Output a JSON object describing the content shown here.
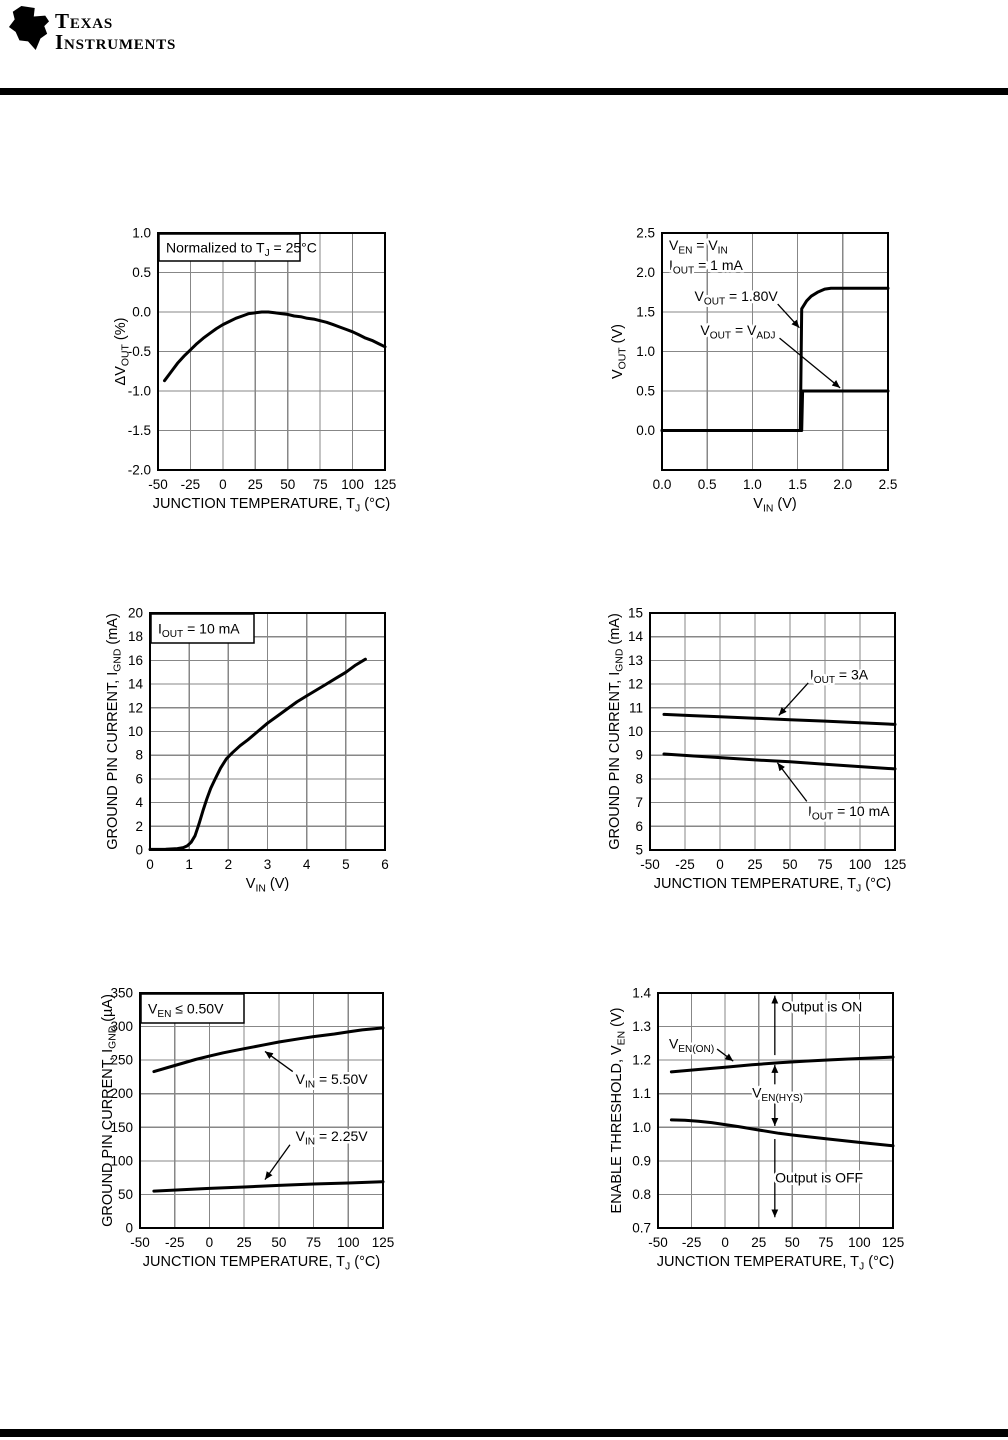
{
  "header": {
    "logo_line1": "Texas",
    "logo_line2": "Instruments",
    "logo_bug_text": "ti"
  },
  "colors": {
    "grid": "#878787",
    "ink": "#000000",
    "background": "#ffffff"
  },
  "chart_data": [
    {
      "id": "vout-change-vs-temperature",
      "type": "line",
      "xlabel": "JUNCTION TEMPERATURE, T_{J} (°C)",
      "ylabel": "ΔV_{OUT} (%)",
      "xlim": [
        -50,
        125
      ],
      "ylim": [
        -2.0,
        1.0
      ],
      "grid": true,
      "legend": "none",
      "xticks": [
        -50,
        -25,
        0,
        25,
        50,
        75,
        100,
        125
      ],
      "xtick_labels": [
        "-50",
        "-25",
        "0",
        "25",
        "50",
        "75",
        "100",
        "125"
      ],
      "yticks": [
        -2.0,
        -1.5,
        -1.0,
        -0.5,
        0.0,
        0.5,
        1.0
      ],
      "ytick_labels": [
        "-2.0",
        "-1.5",
        "-1.0",
        "-0.5",
        "0.0",
        "0.5",
        "1.0"
      ],
      "annotation_box": "Normalized to T_{J} = 25°C",
      "series": [
        {
          "name": "ΔV_{OUT}",
          "points": [
            [
              -45,
              -0.87
            ],
            [
              -40,
              -0.76
            ],
            [
              -35,
              -0.65
            ],
            [
              -30,
              -0.56
            ],
            [
              -25,
              -0.48
            ],
            [
              -20,
              -0.4
            ],
            [
              -15,
              -0.33
            ],
            [
              -10,
              -0.27
            ],
            [
              -5,
              -0.21
            ],
            [
              0,
              -0.16
            ],
            [
              5,
              -0.12
            ],
            [
              10,
              -0.08
            ],
            [
              15,
              -0.05
            ],
            [
              20,
              -0.02
            ],
            [
              25,
              -0.01
            ],
            [
              30,
              0
            ],
            [
              35,
              0
            ],
            [
              40,
              -0.01
            ],
            [
              45,
              -0.02
            ],
            [
              50,
              -0.03
            ],
            [
              55,
              -0.05
            ],
            [
              60,
              -0.06
            ],
            [
              65,
              -0.08
            ],
            [
              70,
              -0.09
            ],
            [
              75,
              -0.11
            ],
            [
              80,
              -0.13
            ],
            [
              85,
              -0.16
            ],
            [
              90,
              -0.19
            ],
            [
              95,
              -0.22
            ],
            [
              100,
              -0.25
            ],
            [
              105,
              -0.29
            ],
            [
              110,
              -0.33
            ],
            [
              115,
              -0.36
            ],
            [
              120,
              -0.4
            ],
            [
              125,
              -0.44
            ]
          ]
        }
      ],
      "labels": []
    },
    {
      "id": "vout-vs-vin",
      "type": "line",
      "xlabel": "V_{IN} (V)",
      "ylabel": "V_{OUT} (V)",
      "xlim": [
        0,
        2.5
      ],
      "ylim": [
        -0.5,
        2.5
      ],
      "grid": true,
      "legend": "none",
      "xticks": [
        0,
        0.5,
        1.0,
        1.5,
        2.0,
        2.5
      ],
      "xtick_labels": [
        "0.0",
        "0.5",
        "1.0",
        "1.5",
        "2.0",
        "2.5"
      ],
      "yticks": [
        0,
        0.5,
        1.0,
        1.5,
        2.0,
        2.5
      ],
      "ytick_labels": [
        "0.0",
        "0.5",
        "1.0",
        "1.5",
        "2.0",
        "2.5"
      ],
      "annotation_lines": [
        "V_{EN} = V_{IN}",
        "I_{OUT} = 1 mA"
      ],
      "series": [
        {
          "name": "V_{OUT} = 1.80V",
          "points": [
            [
              0,
              0
            ],
            [
              1.53,
              0
            ],
            [
              1.545,
              1.54
            ],
            [
              1.6,
              1.64
            ],
            [
              1.65,
              1.7
            ],
            [
              1.72,
              1.75
            ],
            [
              1.8,
              1.79
            ],
            [
              1.87,
              1.8
            ],
            [
              2.5,
              1.8
            ]
          ]
        },
        {
          "name": "V_{OUT} = V_{ADJ}",
          "points": [
            [
              0,
              0
            ],
            [
              1.545,
              0
            ],
            [
              1.555,
              0.5
            ],
            [
              2.5,
              0.5
            ]
          ]
        }
      ],
      "labels": [
        {
          "text": "V_{OUT} = 1.80V",
          "x": 0.82,
          "y": 1.7,
          "arrow": {
            "x1": 1.28,
            "y1": 1.6,
            "x2": 1.52,
            "y2": 1.3
          }
        },
        {
          "text": "V_{OUT} = V_{ADJ}",
          "x": 0.84,
          "y": 1.27,
          "arrow": {
            "x1": 1.3,
            "y1": 1.17,
            "x2": 1.97,
            "y2": 0.54
          }
        }
      ]
    },
    {
      "id": "ignd-vs-vin",
      "type": "line",
      "xlabel": "V_{IN} (V)",
      "ylabel": "GROUND PIN CURRENT, I_{GND} (mA)",
      "xlim": [
        0,
        6
      ],
      "ylim": [
        0,
        20
      ],
      "grid": true,
      "legend": "none",
      "xticks": [
        0,
        1,
        2,
        3,
        4,
        5,
        6
      ],
      "xtick_labels": [
        "0",
        "1",
        "2",
        "3",
        "4",
        "5",
        "6"
      ],
      "yticks": [
        0,
        2,
        4,
        6,
        8,
        10,
        12,
        14,
        16,
        18,
        20
      ],
      "ytick_labels": [
        "0",
        "2",
        "4",
        "6",
        "8",
        "10",
        "12",
        "14",
        "16",
        "18",
        "20"
      ],
      "annotation_box": "I_{OUT} = 10 mA",
      "series": [
        {
          "name": "I_{GND}",
          "points": [
            [
              0,
              0.05
            ],
            [
              0.4,
              0.07
            ],
            [
              0.7,
              0.12
            ],
            [
              0.85,
              0.2
            ],
            [
              0.95,
              0.35
            ],
            [
              1.05,
              0.65
            ],
            [
              1.15,
              1.2
            ],
            [
              1.25,
              2.2
            ],
            [
              1.35,
              3.3
            ],
            [
              1.45,
              4.3
            ],
            [
              1.55,
              5.2
            ],
            [
              1.65,
              5.9
            ],
            [
              1.8,
              6.9
            ],
            [
              1.95,
              7.7
            ],
            [
              2.1,
              8.2
            ],
            [
              2.3,
              8.8
            ],
            [
              2.5,
              9.3
            ],
            [
              2.75,
              10
            ],
            [
              3,
              10.7
            ],
            [
              3.25,
              11.3
            ],
            [
              3.5,
              11.9
            ],
            [
              3.75,
              12.5
            ],
            [
              4,
              13
            ],
            [
              4.25,
              13.5
            ],
            [
              4.5,
              14
            ],
            [
              4.75,
              14.5
            ],
            [
              5,
              15
            ],
            [
              5.25,
              15.6
            ],
            [
              5.5,
              16.1
            ]
          ]
        }
      ],
      "labels": []
    },
    {
      "id": "ignd-vs-temperature",
      "type": "line",
      "xlabel": "JUNCTION TEMPERATURE, T_{J} (°C)",
      "ylabel": "GROUND PIN CURRENT, I_{GND} (mA)",
      "xlim": [
        -50,
        125
      ],
      "ylim": [
        5,
        15
      ],
      "grid": true,
      "legend": "none",
      "xticks": [
        -50,
        -25,
        0,
        25,
        50,
        75,
        100,
        125
      ],
      "xtick_labels": [
        "-50",
        "-25",
        "0",
        "25",
        "50",
        "75",
        "100",
        "125"
      ],
      "yticks": [
        5,
        6,
        7,
        8,
        9,
        10,
        11,
        12,
        13,
        14,
        15
      ],
      "ytick_labels": [
        "5",
        "6",
        "7",
        "8",
        "9",
        "10",
        "11",
        "12",
        "13",
        "14",
        "15"
      ],
      "series": [
        {
          "name": "I_{OUT} = 3A",
          "points": [
            [
              -40,
              10.72
            ],
            [
              -20,
              10.67
            ],
            [
              0,
              10.62
            ],
            [
              25,
              10.56
            ],
            [
              50,
              10.5
            ],
            [
              75,
              10.44
            ],
            [
              100,
              10.37
            ],
            [
              125,
              10.3
            ]
          ]
        },
        {
          "name": "I_{OUT} = 10 mA",
          "points": [
            [
              -40,
              9.05
            ],
            [
              -20,
              8.97
            ],
            [
              0,
              8.9
            ],
            [
              25,
              8.8
            ],
            [
              50,
              8.72
            ],
            [
              75,
              8.62
            ],
            [
              100,
              8.52
            ],
            [
              125,
              8.42
            ]
          ]
        }
      ],
      "labels": [
        {
          "text": "I_{OUT} = 3A",
          "x": 85,
          "y": 12.4,
          "arrow": {
            "x1": 63,
            "y1": 12.05,
            "x2": 42,
            "y2": 10.68
          }
        },
        {
          "text": "I_{OUT} = 10 mA",
          "x": 92,
          "y": 6.65,
          "arrow": {
            "x1": 62,
            "y1": 7.05,
            "x2": 41,
            "y2": 8.68
          }
        }
      ]
    },
    {
      "id": "ignd-shutdown-vs-temperature",
      "type": "line",
      "xlabel": "JUNCTION TEMPERATURE, T_{J} (°C)",
      "ylabel": "GROUND PIN CURRENT, I_{GND} (µA)",
      "xlim": [
        -50,
        125
      ],
      "ylim": [
        0,
        350
      ],
      "grid": true,
      "legend": "none",
      "xticks": [
        -50,
        -25,
        0,
        25,
        50,
        75,
        100,
        125
      ],
      "xtick_labels": [
        "-50",
        "-25",
        "0",
        "25",
        "50",
        "75",
        "100",
        "125"
      ],
      "yticks": [
        0,
        50,
        100,
        150,
        200,
        250,
        300,
        350
      ],
      "ytick_labels": [
        "0",
        "50",
        "100",
        "150",
        "200",
        "250",
        "300",
        "350"
      ],
      "annotation_box": "V_{EN} ≤ 0.50V",
      "series": [
        {
          "name": "V_{IN} = 5.50V",
          "points": [
            [
              -40,
              233
            ],
            [
              -30,
              239
            ],
            [
              -20,
              245
            ],
            [
              -10,
              251
            ],
            [
              0,
              256
            ],
            [
              10,
              261
            ],
            [
              25,
              267
            ],
            [
              40,
              273
            ],
            [
              50,
              277
            ],
            [
              65,
              282
            ],
            [
              75,
              285
            ],
            [
              90,
              289
            ],
            [
              100,
              292
            ],
            [
              110,
              295
            ],
            [
              125,
              298
            ]
          ]
        },
        {
          "name": "V_{IN} = 2.25V",
          "points": [
            [
              -40,
              55
            ],
            [
              -20,
              57
            ],
            [
              0,
              59
            ],
            [
              25,
              61
            ],
            [
              50,
              63.5
            ],
            [
              75,
              65.5
            ],
            [
              100,
              67
            ],
            [
              125,
              69
            ]
          ]
        }
      ],
      "labels": [
        {
          "text": "V_{IN} = 5.50V",
          "x": 88,
          "y": 222,
          "arrow": {
            "x1": 60,
            "y1": 233,
            "x2": 40,
            "y2": 263
          }
        },
        {
          "text": "V_{IN} = 2.25V",
          "x": 88,
          "y": 137,
          "arrow": {
            "x1": 58,
            "y1": 124,
            "x2": 40,
            "y2": 72
          }
        }
      ]
    },
    {
      "id": "enable-threshold-vs-temperature",
      "type": "line",
      "xlabel": "JUNCTION TEMPERATURE, T_{J} (°C)",
      "ylabel": "ENABLE THRESHOLD, V_{EN} (V)",
      "xlim": [
        -50,
        125
      ],
      "ylim": [
        0.7,
        1.4
      ],
      "grid": true,
      "legend": "none",
      "xticks": [
        -50,
        -25,
        0,
        25,
        50,
        75,
        100,
        125
      ],
      "xtick_labels": [
        "-50",
        "-25",
        "0",
        "25",
        "50",
        "75",
        "100",
        "125"
      ],
      "yticks": [
        0.7,
        0.8,
        0.9,
        1.0,
        1.1,
        1.2,
        1.3,
        1.4
      ],
      "ytick_labels": [
        "0.7",
        "0.8",
        "0.9",
        "1.0",
        "1.1",
        "1.2",
        "1.3",
        "1.4"
      ],
      "series": [
        {
          "name": "V_{EN(ON)}",
          "points": [
            [
              -40,
              1.165
            ],
            [
              -20,
              1.172
            ],
            [
              0,
              1.179
            ],
            [
              20,
              1.186
            ],
            [
              40,
              1.192
            ],
            [
              60,
              1.197
            ],
            [
              80,
              1.201
            ],
            [
              100,
              1.205
            ],
            [
              125,
              1.209
            ]
          ]
        },
        {
          "name": "V_{EN(OFF)}",
          "points": [
            [
              -40,
              1.022
            ],
            [
              -30,
              1.021
            ],
            [
              -20,
              1.018
            ],
            [
              -10,
              1.014
            ],
            [
              0,
              1.008
            ],
            [
              10,
              1.002
            ],
            [
              25,
              0.992
            ],
            [
              40,
              0.982
            ],
            [
              50,
              0.977
            ],
            [
              75,
              0.966
            ],
            [
              100,
              0.955
            ],
            [
              125,
              0.945
            ]
          ]
        }
      ],
      "labels": [
        {
          "text": "Output is ON",
          "x": 72,
          "y": 1.36
        },
        {
          "text": "V_{EN(ON)}",
          "x": -25,
          "y": 1.25,
          "arrow": {
            "x1": -6,
            "y1": 1.233,
            "x2": 6,
            "y2": 1.197
          }
        },
        {
          "text": "V_{EN(HYS)}",
          "x": 39,
          "y": 1.103
        },
        {
          "text": "Output is OFF",
          "x": 70,
          "y": 0.85
        }
      ],
      "varrows": [
        {
          "x": 37,
          "y1": 1.215,
          "y2": 1.392
        },
        {
          "x": 37,
          "y1": 1.128,
          "y2": 1.186
        },
        {
          "x": 37,
          "y1": 1.078,
          "y2": 1.004
        },
        {
          "x": 37,
          "y1": 0.965,
          "y2": 0.732
        }
      ]
    }
  ]
}
